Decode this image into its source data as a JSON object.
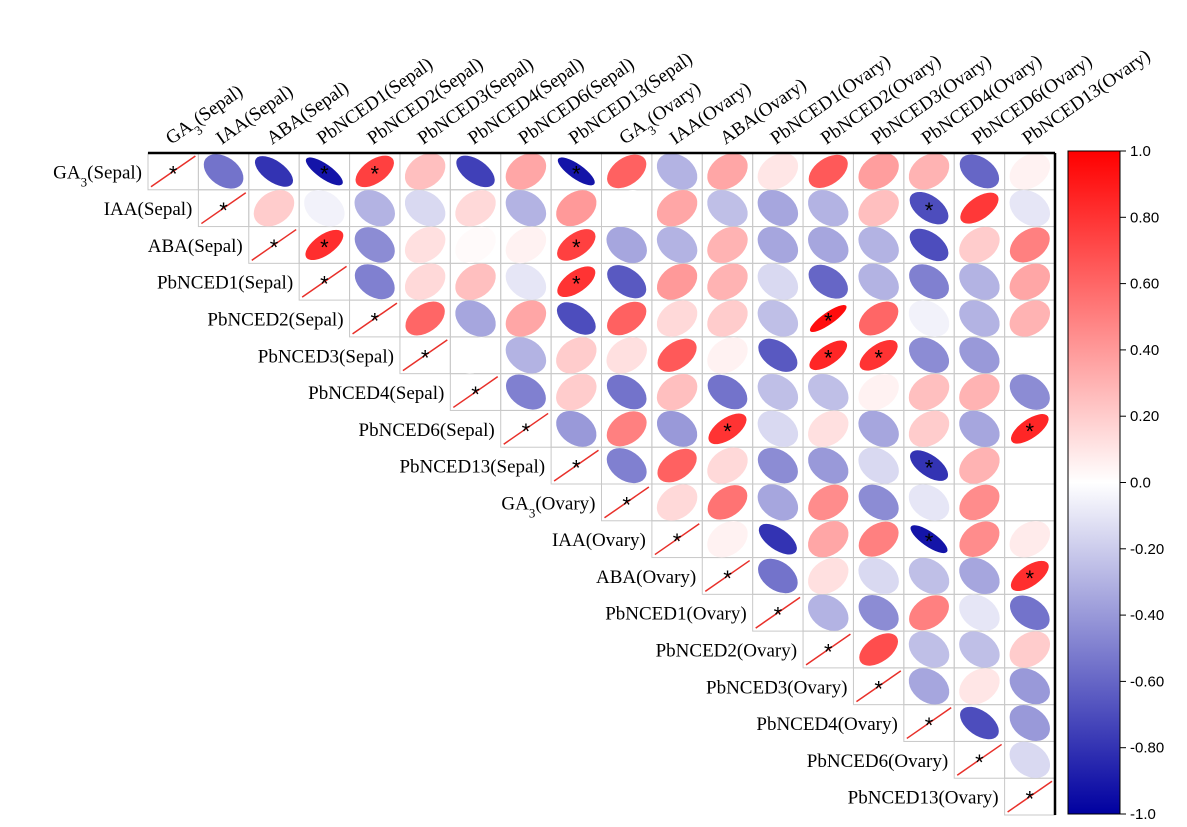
{
  "chart_data": {
    "type": "heatmap",
    "title": "",
    "variables": [
      {
        "base": "GA",
        "sub": "3",
        "suffix": "(Sepal)"
      },
      {
        "base": "IAA",
        "sub": "",
        "suffix": "(Sepal)"
      },
      {
        "base": "ABA",
        "sub": "",
        "suffix": "(Sepal)"
      },
      {
        "base": "PbNCED1",
        "sub": "",
        "suffix": "(Sepal)"
      },
      {
        "base": "PbNCED2",
        "sub": "",
        "suffix": "(Sepal)"
      },
      {
        "base": "PbNCED3",
        "sub": "",
        "suffix": "(Sepal)"
      },
      {
        "base": "PbNCED4",
        "sub": "",
        "suffix": "(Sepal)"
      },
      {
        "base": "PbNCED6",
        "sub": "",
        "suffix": "(Sepal)"
      },
      {
        "base": "PbNCED13",
        "sub": "",
        "suffix": "(Sepal)"
      },
      {
        "base": "GA",
        "sub": "3",
        "suffix": "(Ovary)"
      },
      {
        "base": "IAA",
        "sub": "",
        "suffix": "(Ovary)"
      },
      {
        "base": "ABA",
        "sub": "",
        "suffix": "(Ovary)"
      },
      {
        "base": "PbNCED1",
        "sub": "",
        "suffix": "(Ovary)"
      },
      {
        "base": "PbNCED2",
        "sub": "",
        "suffix": "(Ovary)"
      },
      {
        "base": "PbNCED3",
        "sub": "",
        "suffix": "(Ovary)"
      },
      {
        "base": "PbNCED4",
        "sub": "",
        "suffix": "(Ovary)"
      },
      {
        "base": "PbNCED6",
        "sub": "",
        "suffix": "(Ovary)"
      },
      {
        "base": "PbNCED13",
        "sub": "",
        "suffix": "(Ovary)"
      }
    ],
    "upper_triangle_values": [
      [
        -0.55,
        -0.8,
        -0.92,
        0.75,
        0.25,
        -0.75,
        0.35,
        -0.92,
        0.62,
        -0.3,
        0.35,
        0.1,
        0.65,
        0.38,
        0.3,
        -0.6,
        0.05
      ],
      [
        0.2,
        -0.05,
        -0.3,
        -0.15,
        0.15,
        -0.3,
        0.4,
        0.0,
        0.35,
        -0.25,
        -0.35,
        -0.3,
        0.25,
        -0.7,
        0.78,
        -0.1
      ],
      [
        0.82,
        -0.45,
        0.12,
        0.02,
        0.05,
        0.75,
        -0.35,
        -0.3,
        0.3,
        -0.35,
        -0.35,
        -0.3,
        -0.7,
        0.2,
        0.5
      ],
      [
        -0.5,
        0.15,
        0.25,
        -0.1,
        0.8,
        -0.65,
        0.4,
        0.3,
        -0.15,
        -0.6,
        -0.3,
        -0.5,
        -0.3,
        0.35
      ],
      [
        0.6,
        -0.35,
        0.35,
        -0.7,
        0.62,
        0.15,
        0.2,
        -0.25,
        0.95,
        0.6,
        -0.05,
        -0.3,
        0.3
      ],
      [
        0.0,
        -0.3,
        0.2,
        0.12,
        0.65,
        0.05,
        -0.65,
        0.85,
        0.8,
        -0.45,
        -0.4
      ],
      [
        -0.5,
        0.2,
        -0.55,
        0.25,
        -0.55,
        -0.25,
        -0.25,
        0.05,
        0.25,
        0.3,
        -0.45
      ],
      [
        -0.4,
        0.5,
        -0.4,
        0.8,
        -0.15,
        0.12,
        -0.35,
        0.2,
        -0.35,
        0.85
      ],
      [
        -0.5,
        0.62,
        0.15,
        -0.45,
        -0.4,
        -0.15,
        -0.8,
        0.3
      ],
      [
        0.15,
        0.55,
        -0.35,
        0.45,
        -0.45,
        -0.1,
        0.45
      ],
      [
        0.05,
        -0.8,
        0.35,
        0.5,
        -0.92,
        0.45,
        0.08
      ],
      [
        -0.55,
        0.12,
        -0.15,
        -0.25,
        -0.35,
        0.82
      ],
      [
        -0.3,
        -0.45,
        0.5,
        -0.1,
        -0.55
      ],
      [
        0.7,
        -0.25,
        -0.25,
        0.2
      ],
      [
        -0.35,
        0.1,
        -0.4
      ],
      [
        -0.7,
        -0.4
      ],
      [
        -0.15
      ]
    ],
    "significant_cells": [
      [
        0,
        3
      ],
      [
        0,
        4
      ],
      [
        0,
        8
      ],
      [
        1,
        15
      ],
      [
        2,
        3
      ],
      [
        2,
        8
      ],
      [
        3,
        8
      ],
      [
        4,
        13
      ],
      [
        5,
        13
      ],
      [
        5,
        14
      ],
      [
        7,
        11
      ],
      [
        7,
        17
      ],
      [
        8,
        15
      ],
      [
        10,
        15
      ],
      [
        11,
        17
      ]
    ],
    "significance_marker": "*",
    "diagonal_marker": "*",
    "colorbar": {
      "range": [
        -1.0,
        1.0
      ],
      "ticks": [
        "1.0",
        "0.80",
        "0.60",
        "0.40",
        "0.20",
        "0.0",
        "-0.20",
        "-0.40",
        "-0.60",
        "-0.80",
        "-1.0"
      ],
      "colors": {
        "negative": "#0000a0",
        "zero": "#ffffff",
        "positive": "#ff0000"
      }
    },
    "accent_colors": {
      "diagonal_line": "#e8302a",
      "grid": "#c8c8c8",
      "frame": "#000000"
    }
  }
}
